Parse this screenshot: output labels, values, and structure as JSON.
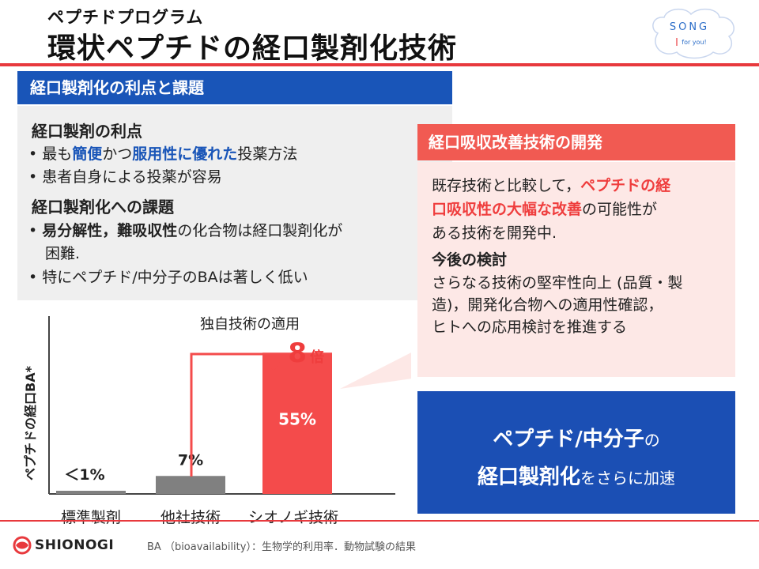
{
  "header": {
    "subtitle": "ペプチドプログラム",
    "title": "環状ペプチドの経口製剤化技術",
    "logo_song": "SONG",
    "logo_tagline": "for you!"
  },
  "left_panel": {
    "heading": "経口製剤化の利点と課題",
    "advantages_title": "経口製剤の利点",
    "adv1_a": "最も",
    "adv1_b": "簡便",
    "adv1_c": "かつ",
    "adv1_d": "服用性に優れた",
    "adv1_e": "投薬方法",
    "adv2": "患者自身による投薬が容易",
    "challenges_title": "経口製剤化への課題",
    "ch1_bold": "易分解性，難吸収性",
    "ch1_rest": "の化合物は経口製剤化が",
    "ch1_line2": "困難.",
    "ch2": "特にペプチド/中分子のBAは著しく低い"
  },
  "right_panel": {
    "heading": "経口吸収改善技術の開発",
    "p1_a": "既存技術と比較して，",
    "p1_b": "ペプチドの経",
    "p1_c": "口吸収性の大幅な改善",
    "p1_d": "の可能性が",
    "p1_e": "ある技術を開発中.",
    "future_title": "今後の検討",
    "f1": "さらなる技術の堅牢性向上 (品質・製",
    "f2": "造)，開発化合物への適用性確認，",
    "f3": "ヒトへの応用検討を推進する"
  },
  "blue_box": {
    "line1_bold": "ペプチド/中分子",
    "line1_small": "の",
    "line2_bold": "経口製剤化",
    "line2_small": "をさらに加速"
  },
  "chart_data": {
    "type": "bar",
    "categories": [
      "標準製剤",
      "他社技術",
      "シオノギ技術"
    ],
    "values": [
      1,
      7,
      55
    ],
    "data_labels": [
      "＜1%",
      "7%",
      "55%"
    ],
    "bar_colors": [
      "#808080",
      "#808080",
      "#f44b4b"
    ],
    "ylabel": "ペプチドの経口BA*",
    "annotation": "独自技術の適用",
    "multiplier_number": "8",
    "multiplier_unit": "倍",
    "ylim": [
      0,
      60
    ]
  },
  "footer": {
    "company": "SHIONOGI",
    "footnote": "BA （bioavailability）：生物学的利用率．動物試験の結果"
  },
  "colors": {
    "blue": "#1955b8",
    "red": "#f15a52",
    "pink_bg": "#fde8e6",
    "gray_bg": "#efefef"
  }
}
